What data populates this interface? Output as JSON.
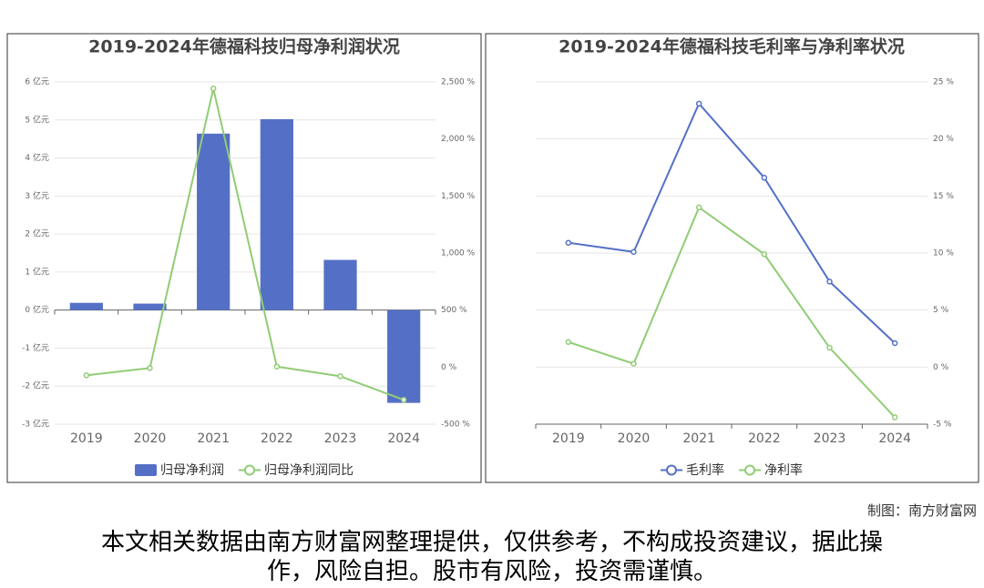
{
  "chart_data": [
    {
      "type": "bar",
      "title": "2019-2024年德福科技归母净利润状况",
      "categories": [
        "2019",
        "2020",
        "2021",
        "2022",
        "2023",
        "2024"
      ],
      "series": [
        {
          "name": "归母净利润",
          "color": "#5470c6",
          "values": [
            0.19,
            0.17,
            4.64,
            5.02,
            1.32,
            -2.44
          ]
        },
        {
          "name": "归母净利润同比",
          "color": "#91cc75",
          "type": "line",
          "axis": "y2",
          "values": [
            -72,
            -8,
            2442,
            5,
            -80,
            -287
          ]
        }
      ],
      "ylim": [
        -3,
        6
      ],
      "yticks": [
        {
          "value": -3,
          "label": "-3 亿元"
        },
        {
          "value": -2,
          "label": "-2 亿元"
        },
        {
          "value": -1,
          "label": "-1 亿元"
        },
        {
          "value": 0,
          "label": "0 亿元"
        },
        {
          "value": 1,
          "label": "1 亿元"
        },
        {
          "value": 2,
          "label": "2 亿元"
        },
        {
          "value": 3,
          "label": "3 亿元"
        },
        {
          "value": 4,
          "label": "4 亿元"
        },
        {
          "value": 5,
          "label": "5 亿元"
        },
        {
          "value": 6,
          "label": "6 亿元"
        }
      ],
      "y2lim": [
        -500,
        2500
      ],
      "y2ticks": [
        {
          "value": -500,
          "label": "-500 %"
        },
        {
          "value": 0,
          "label": "0 %"
        },
        {
          "value": 500,
          "label": "500 %"
        },
        {
          "value": 1000,
          "label": "1,000 %"
        },
        {
          "value": 1500,
          "label": "1,500 %"
        },
        {
          "value": 2000,
          "label": "2,000 %"
        },
        {
          "value": 2500,
          "label": "2,500 %"
        }
      ],
      "grid": true
    },
    {
      "type": "line",
      "title": "2019-2024年德福科技毛利率与净利率状况",
      "categories": [
        "2019",
        "2020",
        "2021",
        "2022",
        "2023",
        "2024"
      ],
      "series": [
        {
          "name": "毛利率",
          "color": "#5470c6",
          "values": [
            10.9,
            10.1,
            23.1,
            16.6,
            7.5,
            2.1
          ]
        },
        {
          "name": "净利率",
          "color": "#91cc75",
          "values": [
            2.2,
            0.3,
            14.0,
            9.9,
            1.7,
            -4.4
          ]
        }
      ],
      "ylim": [
        -5,
        25
      ],
      "yticks": [
        {
          "value": -5,
          "label": "-5 %"
        },
        {
          "value": 0,
          "label": "0 %"
        },
        {
          "value": 5,
          "label": "5 %"
        },
        {
          "value": 10,
          "label": "10 %"
        },
        {
          "value": 15,
          "label": "15 %"
        },
        {
          "value": 20,
          "label": "20 %"
        },
        {
          "value": 25,
          "label": "25 %"
        }
      ],
      "y_axis_side": "right",
      "grid": true
    }
  ],
  "footer": {
    "credit": "制图：南方财富网",
    "disclaimer": "本文相关数据由南方财富网整理提供，仅供参考，不构成投资建议，据此操作，风险自担。股市有风险，投资需谨慎。"
  }
}
